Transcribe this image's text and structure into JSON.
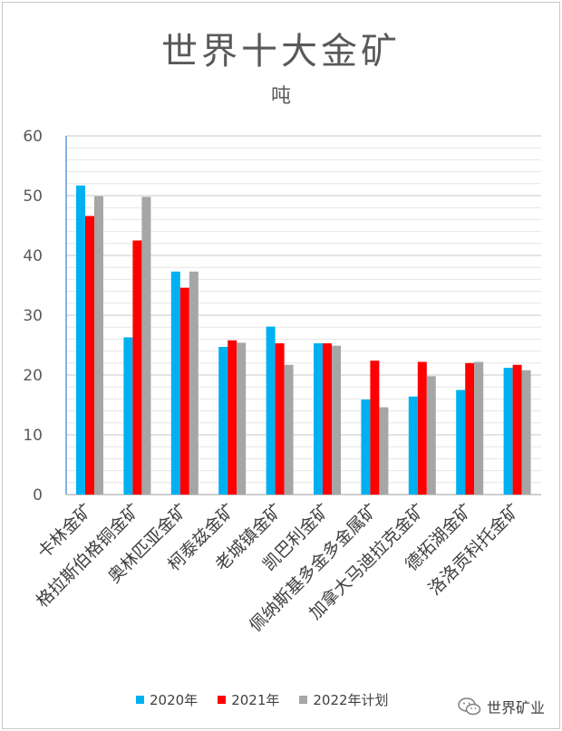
{
  "chart_data": {
    "type": "bar",
    "title": "世界十大金矿",
    "subtitle": "吨",
    "categories": [
      "卡林金矿",
      "格拉斯伯格铜金矿",
      "奥林匹亚金矿",
      "柯泰兹金矿",
      "老城镇金矿",
      "凯巴利金矿",
      "佩纳斯基多金多金属矿",
      "加拿大马迪拉克金矿",
      "德拓湖金矿",
      "洛洛贡科托金矿"
    ],
    "series": [
      {
        "name": "2020年",
        "color": "#00b0f0",
        "values": [
          51.7,
          26.3,
          37.3,
          24.7,
          28.1,
          25.3,
          15.9,
          16.4,
          17.5,
          21.2
        ]
      },
      {
        "name": "2021年",
        "color": "#ff0000",
        "values": [
          46.6,
          42.5,
          34.6,
          25.8,
          25.3,
          25.3,
          22.4,
          22.2,
          22.0,
          21.7
        ]
      },
      {
        "name": "2022年计划",
        "color": "#a6a6a6",
        "values": [
          49.9,
          49.8,
          37.3,
          25.4,
          21.7,
          24.9,
          14.6,
          19.8,
          22.2,
          20.8
        ]
      }
    ],
    "ylim": [
      0,
      60
    ],
    "yticks": [
      0,
      10,
      20,
      30,
      40,
      50,
      60
    ],
    "grid": true,
    "legend_position": "bottom"
  },
  "watermark": {
    "text": "世界矿业",
    "icon": "wechat-icon"
  }
}
